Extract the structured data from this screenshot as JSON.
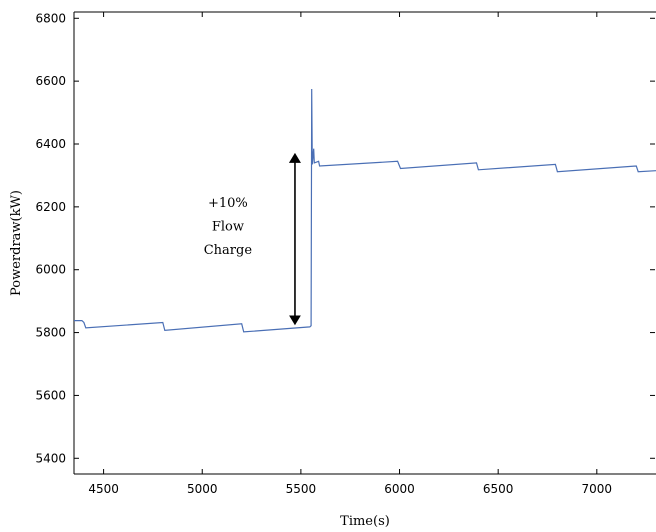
{
  "chart_data": {
    "type": "line",
    "title": "",
    "xlabel": "Time(s)",
    "ylabel": "Powerdraw(kW)",
    "xlim": [
      4350,
      7300
    ],
    "ylim": [
      5350,
      6820
    ],
    "x_ticks": [
      4500,
      5000,
      5500,
      6000,
      6500,
      7000
    ],
    "y_ticks": [
      5400,
      5600,
      5800,
      6000,
      6200,
      6400,
      6600,
      6800
    ],
    "grid": false,
    "line_color": "#4a6fb5",
    "series": [
      {
        "points": [
          [
            4350,
            5838
          ],
          [
            4390,
            5838
          ],
          [
            4400,
            5832
          ],
          [
            4410,
            5815
          ],
          [
            4800,
            5832
          ],
          [
            4810,
            5807
          ],
          [
            5200,
            5828
          ],
          [
            5210,
            5802
          ],
          [
            5545,
            5818
          ],
          [
            5552,
            5822
          ],
          [
            5555,
            6575
          ],
          [
            5558,
            6335
          ],
          [
            5565,
            6385
          ],
          [
            5568,
            6340
          ],
          [
            5590,
            6345
          ],
          [
            5595,
            6330
          ],
          [
            5990,
            6345
          ],
          [
            6005,
            6322
          ],
          [
            6390,
            6340
          ],
          [
            6400,
            6318
          ],
          [
            6790,
            6335
          ],
          [
            6800,
            6312
          ],
          [
            7200,
            6330
          ],
          [
            7210,
            6312
          ],
          [
            7300,
            6315
          ]
        ]
      }
    ],
    "annotations": [
      {
        "lines": [
          "+10%",
          "Flow",
          "Charge"
        ]
      }
    ],
    "arrow": {
      "x": 5470,
      "y_from": 5820,
      "y_to": 6375
    },
    "annotation_pos": {
      "x": 5130,
      "y_lines": [
        6200,
        6125,
        6050
      ]
    }
  }
}
